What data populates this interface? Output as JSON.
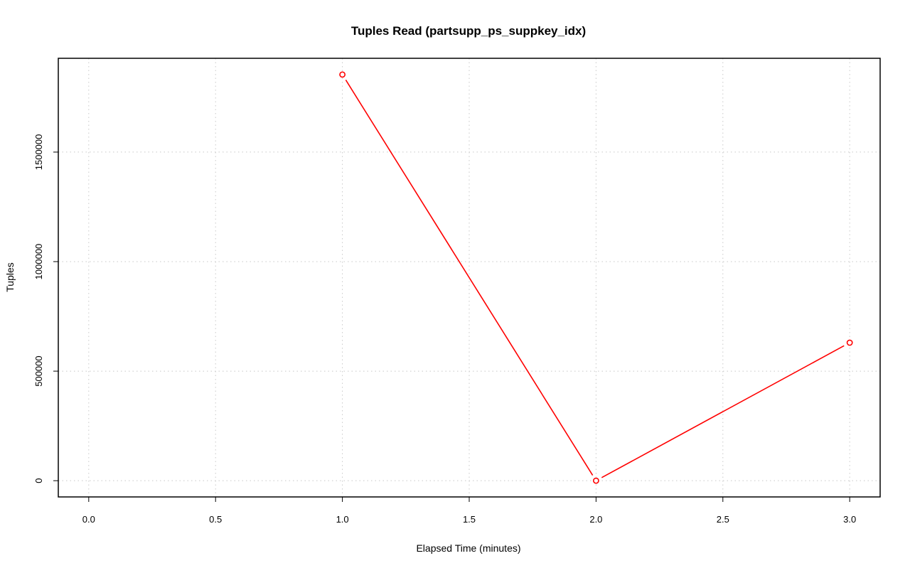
{
  "chart_data": {
    "type": "line",
    "title": "Tuples Read (partsupp_ps_suppkey_idx)",
    "xlabel": "Elapsed Time (minutes)",
    "ylabel": "Tuples",
    "x": [
      1,
      2,
      3
    ],
    "series": [
      {
        "values": [
          1854000,
          0,
          630000
        ],
        "color": "#ff0000"
      }
    ],
    "xlim": [
      -0.12,
      3.12
    ],
    "ylim": [
      -74160,
      1928160
    ],
    "xticks": [
      "0.0",
      "0.5",
      "1.0",
      "1.5",
      "2.0",
      "2.5",
      "3.0"
    ],
    "yticks": [
      "0",
      "500000",
      "1000000",
      "1500000"
    ],
    "grid": true,
    "markers": "open-circle"
  }
}
